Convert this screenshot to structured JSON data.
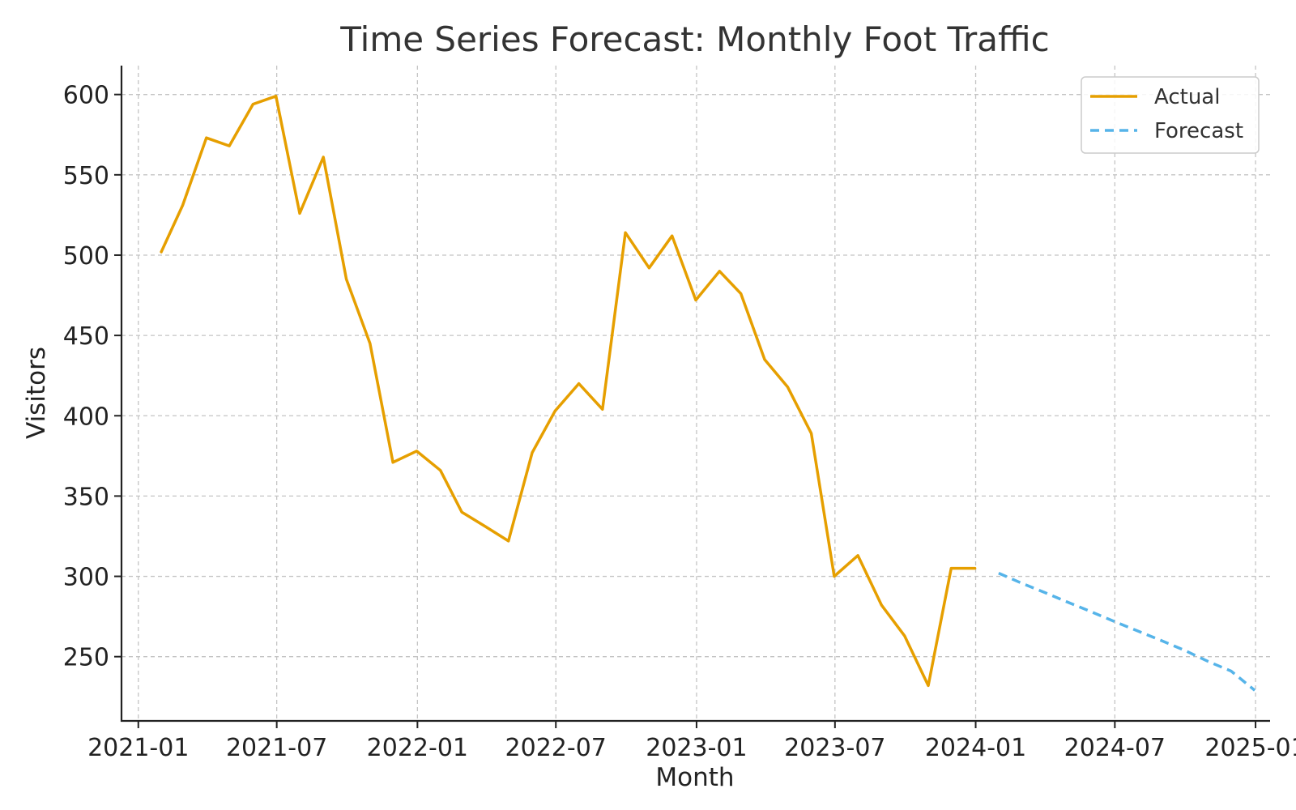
{
  "chart_data": {
    "type": "line",
    "title": "Time Series Forecast: Monthly Foot Traffic",
    "xlabel": "Month",
    "ylabel": "Visitors",
    "xlim": [
      "2020-12-10",
      "2025-01-20"
    ],
    "ylim": [
      210,
      618
    ],
    "grid": true,
    "legend_position": "top-right",
    "x_ticks": [
      "2021-01-01",
      "2021-07-01",
      "2022-01-01",
      "2022-07-01",
      "2023-01-01",
      "2023-07-01",
      "2024-01-01",
      "2024-07-01",
      "2025-01-01"
    ],
    "x_tick_labels": [
      "2021-01",
      "2021-07",
      "2022-01",
      "2022-07",
      "2023-01",
      "2023-07",
      "2024-01",
      "2024-07",
      "2025-01"
    ],
    "y_ticks": [
      250,
      300,
      350,
      400,
      450,
      500,
      550,
      600
    ],
    "y_tick_labels": [
      "250",
      "300",
      "350",
      "400",
      "450",
      "500",
      "550",
      "600"
    ],
    "series": [
      {
        "name": "Actual",
        "color": "#E69F00",
        "style": "solid",
        "x": [
          "2021-01-31",
          "2021-02-28",
          "2021-03-31",
          "2021-04-30",
          "2021-05-31",
          "2021-06-30",
          "2021-07-31",
          "2021-08-31",
          "2021-09-30",
          "2021-10-31",
          "2021-11-30",
          "2021-12-31",
          "2022-01-31",
          "2022-02-28",
          "2022-03-31",
          "2022-04-30",
          "2022-05-31",
          "2022-06-30",
          "2022-07-31",
          "2022-08-31",
          "2022-09-30",
          "2022-10-31",
          "2022-11-30",
          "2022-12-31",
          "2023-01-31",
          "2023-02-28",
          "2023-03-31",
          "2023-04-30",
          "2023-05-31",
          "2023-06-30",
          "2023-07-31",
          "2023-08-31",
          "2023-09-30",
          "2023-10-31",
          "2023-11-30",
          "2023-12-31"
        ],
        "values": [
          502,
          531,
          573,
          568,
          594,
          599,
          526,
          561,
          485,
          445,
          371,
          378,
          366,
          340,
          331,
          322,
          377,
          403,
          420,
          404,
          514,
          492,
          512,
          472,
          490,
          476,
          435,
          418,
          389,
          300,
          313,
          282,
          263,
          232,
          305,
          305
        ]
      },
      {
        "name": "Forecast",
        "color": "#56B4E9",
        "style": "dashed",
        "x": [
          "2024-01-31",
          "2024-02-29",
          "2024-03-31",
          "2024-04-30",
          "2024-05-31",
          "2024-06-30",
          "2024-07-31",
          "2024-08-31",
          "2024-09-30",
          "2024-10-31",
          "2024-11-30",
          "2024-12-31"
        ],
        "values": [
          302,
          296,
          290,
          284,
          278,
          272,
          266,
          260,
          254,
          247,
          241,
          229
        ]
      }
    ]
  }
}
